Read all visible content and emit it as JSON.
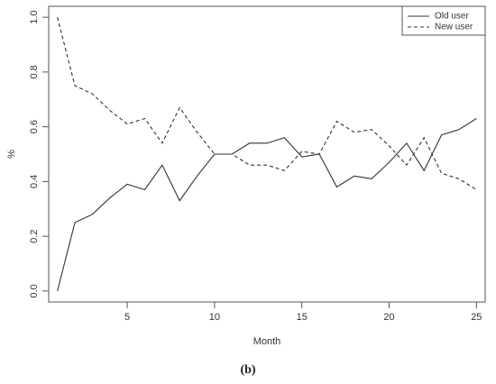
{
  "chart_data": {
    "type": "line",
    "title": "",
    "xlabel": "Month",
    "ylabel": "%",
    "caption": "(b)",
    "xlim": [
      1,
      25
    ],
    "ylim": [
      0.0,
      1.0
    ],
    "xticks": [
      5,
      10,
      15,
      20,
      25
    ],
    "yticks": [
      0.0,
      0.2,
      0.4,
      0.6,
      0.8,
      1.0
    ],
    "ytick_labels": [
      "0.0",
      "0.2",
      "0.4",
      "0.6",
      "0.8",
      "1.0"
    ],
    "grid": false,
    "legend_position": "top-right",
    "x": [
      1,
      2,
      3,
      4,
      5,
      6,
      7,
      8,
      9,
      10,
      11,
      12,
      13,
      14,
      15,
      16,
      17,
      18,
      19,
      20,
      21,
      22,
      23,
      24,
      25
    ],
    "series": [
      {
        "name": "Old user",
        "style": "solid",
        "color": "#333333",
        "values": [
          0.0,
          0.25,
          0.28,
          0.34,
          0.39,
          0.37,
          0.46,
          0.33,
          0.42,
          0.5,
          0.5,
          0.54,
          0.54,
          0.56,
          0.49,
          0.5,
          0.38,
          0.42,
          0.41,
          0.47,
          0.54,
          0.44,
          0.57,
          0.59,
          0.63
        ]
      },
      {
        "name": "New user",
        "style": "dashed",
        "color": "#333333",
        "values": [
          1.0,
          0.75,
          0.72,
          0.66,
          0.61,
          0.63,
          0.54,
          0.67,
          0.58,
          0.5,
          0.5,
          0.46,
          0.46,
          0.44,
          0.51,
          0.5,
          0.62,
          0.58,
          0.59,
          0.53,
          0.46,
          0.56,
          0.43,
          0.41,
          0.37
        ]
      }
    ]
  }
}
